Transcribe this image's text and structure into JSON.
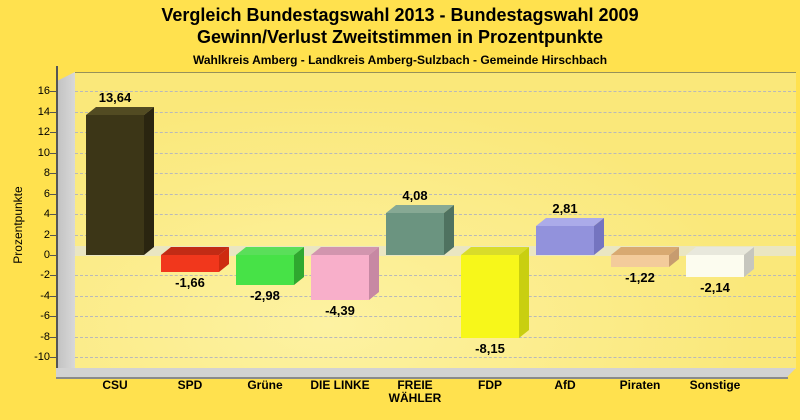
{
  "header": {
    "title_line1": "Vergleich Bundestagswahl 2013 - Bundestagswahl 2009",
    "title_line2": "Gewinn/Verlust Zweitstimmen in Prozentpunkte",
    "subtitle": "Wahlkreis Amberg - Landkreis Amberg-Sulzbach - Gemeinde Hirschbach"
  },
  "chart_data": {
    "type": "bar",
    "style": "3d-bars",
    "title": "Vergleich Bundestagswahl 2013 - Bundestagswahl 2009",
    "subtitle": "Gewinn/Verlust Zweitstimmen in Prozentpunkte",
    "region": "Wahlkreis Amberg - Landkreis Amberg-Sulzbach - Gemeinde Hirschbach",
    "xlabel": "",
    "ylabel": "Prozentpunkte",
    "ylim": [
      -10,
      16
    ],
    "ytick_step": 2,
    "ytick_labels": [
      "16",
      "14",
      "12",
      "10",
      "8",
      "6",
      "4",
      "2",
      "0",
      "-2",
      "-4",
      "-6",
      "-8",
      "-10"
    ],
    "grid": "horizontal-dashed",
    "legend": "none",
    "categories": [
      "CSU",
      "SPD",
      "Grüne",
      "DIE LINKE",
      "FREIE WÄHLER",
      "FDP",
      "AfD",
      "Piraten",
      "Sonstige"
    ],
    "values": [
      13.64,
      -1.66,
      -2.98,
      -4.39,
      4.08,
      -8.15,
      2.81,
      -1.22,
      -2.14
    ],
    "value_labels": [
      "13,64",
      "-1,66",
      "-2,98",
      "-4,39",
      "4,08",
      "-8,15",
      "2,81",
      "-1,22",
      "-2,14"
    ],
    "bar_colors": [
      {
        "front": "#3C3617",
        "top": "#524B22",
        "side": "#2A2510"
      },
      {
        "front": "#F1371C",
        "top": "#C22B15",
        "side": "#CE2B10"
      },
      {
        "front": "#47E247",
        "top": "#5ADF5A",
        "side": "#2FA82F"
      },
      {
        "front": "#F8AFCA",
        "top": "#D295AE",
        "side": "#C788A3"
      },
      {
        "front": "#6B9480",
        "top": "#87A994",
        "side": "#4F7260"
      },
      {
        "front": "#F7F71A",
        "top": "#D9DC2A",
        "side": "#C9CF10"
      },
      {
        "front": "#9292DC",
        "top": "#ABABE9",
        "side": "#7474C0"
      },
      {
        "front": "#F3CB9B",
        "top": "#D8A971",
        "side": "#C79C6F"
      },
      {
        "front": "#FCFCEF",
        "top": "#E8E8DC",
        "side": "#C6C6BE"
      }
    ],
    "colors": {
      "page_bg": "#FFE14E",
      "plot_bg": "#FAE87A",
      "plot_bg_light": "#FDF2A2",
      "plot_border": "#96915A",
      "wall": "#D8D8D8",
      "wall_dark": "#C2C2C2",
      "floor": "#D2D2D2",
      "floor_edge": "#8A8A8A",
      "zero_plane": "#EAE6C2",
      "axis_line": "#555555",
      "text": "#000000"
    }
  }
}
